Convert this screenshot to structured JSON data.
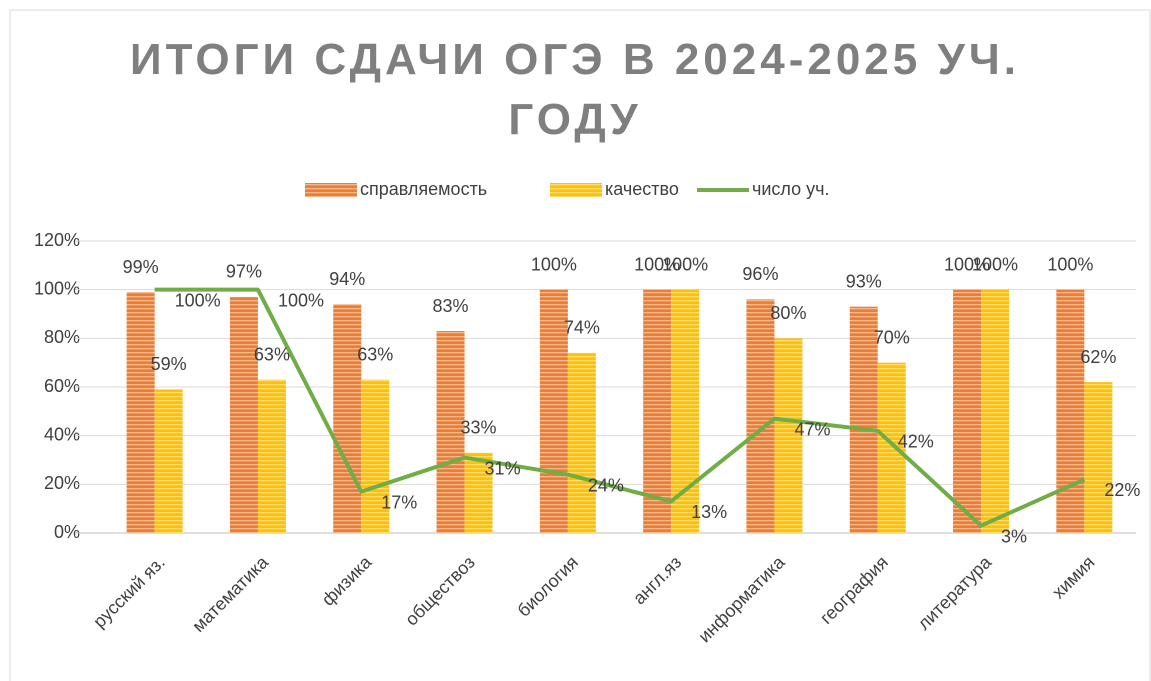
{
  "chart_data": {
    "type": "bar",
    "title": "ИТОГИ СДАЧИ ОГЭ В 2024-2025 УЧ. ГОДУ",
    "categories": [
      "русский яз.",
      "математика",
      "физика",
      "обществоз",
      "биология",
      "англ.яз",
      "информатика",
      "география",
      "литература",
      "химия"
    ],
    "series": [
      {
        "name": "справляемость",
        "type": "bar",
        "color": "#ed7d31",
        "values": [
          99,
          97,
          94,
          83,
          100,
          100,
          96,
          93,
          100,
          100
        ],
        "value_labels": [
          "99%",
          "97%",
          "94%",
          "83%",
          "100%",
          "100%",
          "96%",
          "93%",
          "100%",
          "100%"
        ]
      },
      {
        "name": "качество",
        "type": "bar",
        "color": "#ffc000",
        "values": [
          59,
          63,
          63,
          33,
          74,
          100,
          80,
          70,
          100,
          62
        ],
        "value_labels": [
          "59%",
          "63%",
          "63%",
          "33%",
          "74%",
          "100%",
          "80%",
          "70%",
          "100%",
          "62%"
        ]
      },
      {
        "name": "число уч.",
        "type": "line",
        "color": "#70ad47",
        "values": [
          100,
          100,
          17,
          31,
          24,
          13,
          47,
          42,
          3,
          22
        ],
        "value_labels": [
          "100%",
          "100%",
          "17%",
          "31%",
          "24%",
          "13%",
          "47%",
          "42%",
          "3%",
          "22%"
        ]
      }
    ],
    "ylim": [
      0,
      120
    ],
    "yticks": [
      {
        "value": 0,
        "label": "0%"
      },
      {
        "value": 20,
        "label": "20%"
      },
      {
        "value": 40,
        "label": "40%"
      },
      {
        "value": 60,
        "label": "60%"
      },
      {
        "value": 80,
        "label": "80%"
      },
      {
        "value": 100,
        "label": "100%"
      },
      {
        "value": 120,
        "label": "120%"
      }
    ],
    "grid": true,
    "legend": "top"
  }
}
